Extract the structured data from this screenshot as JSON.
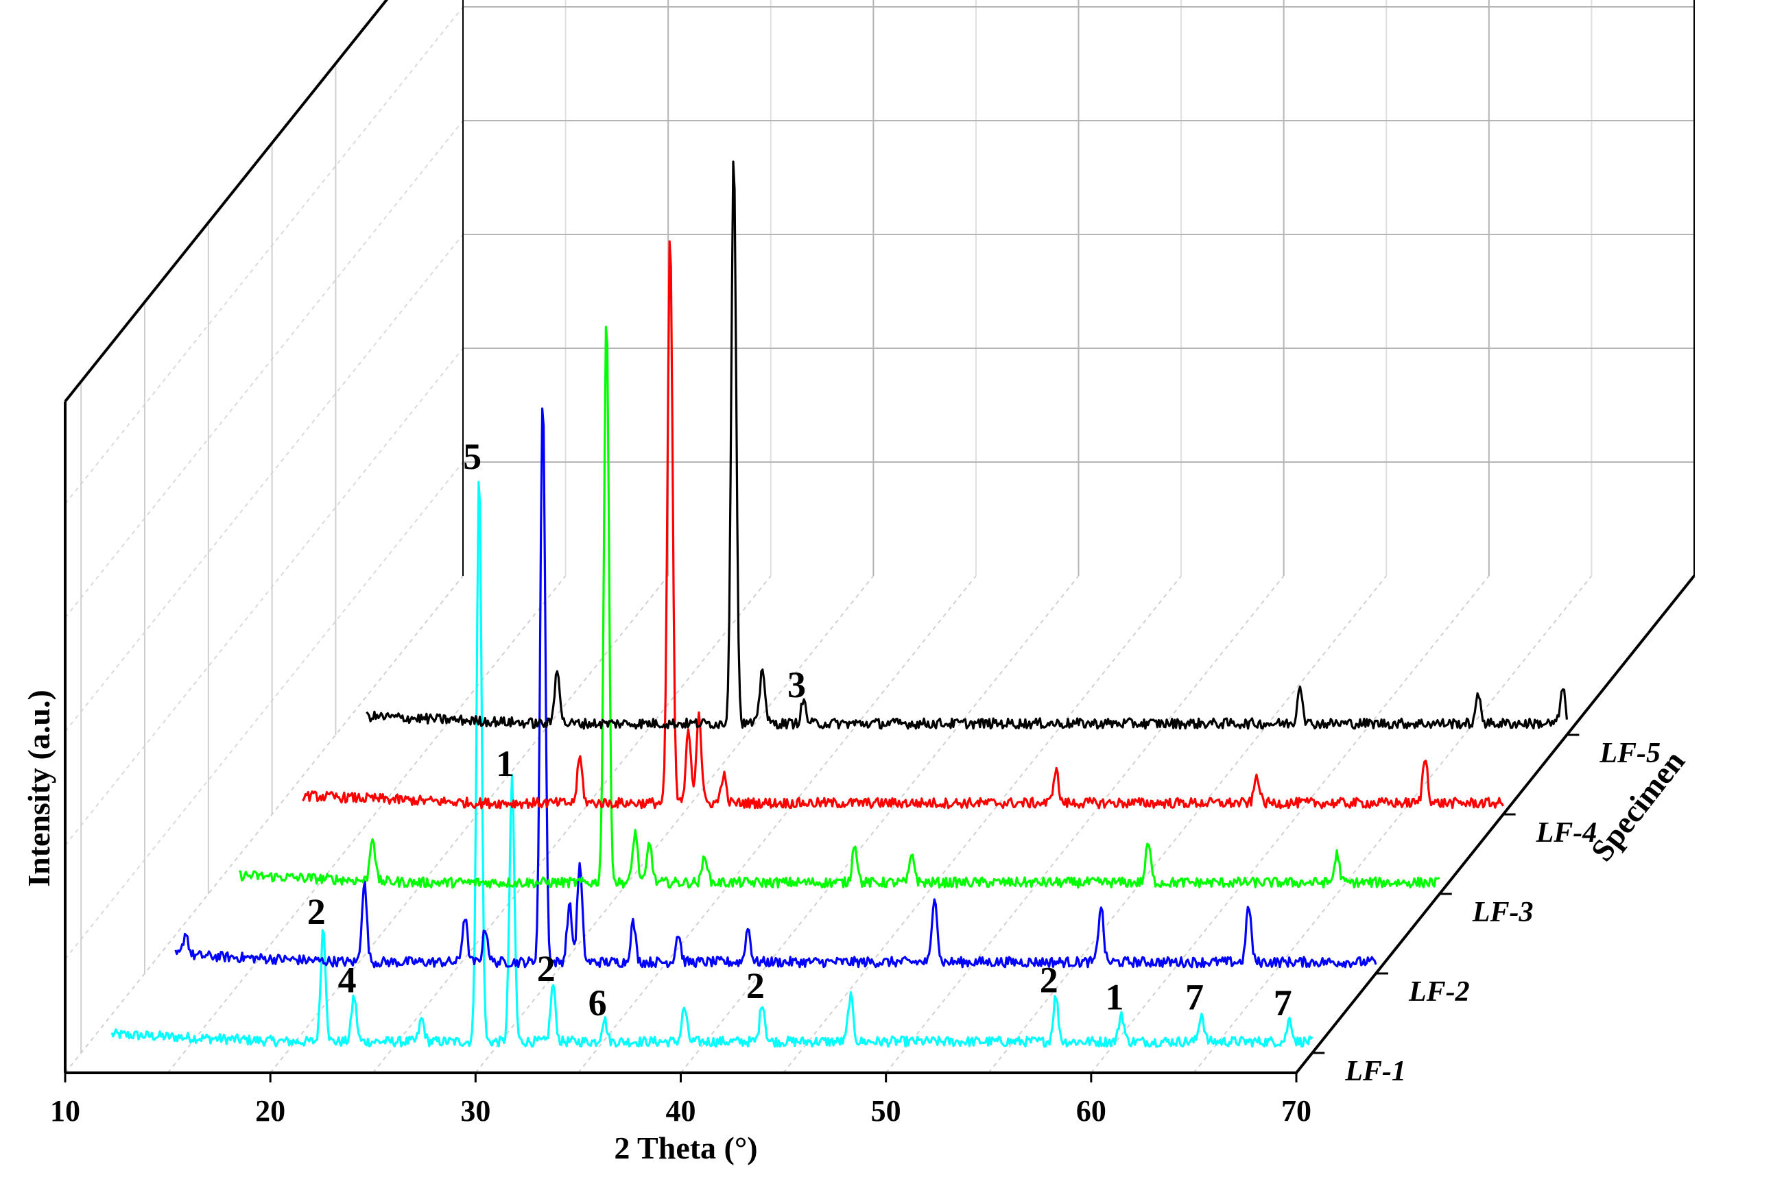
{
  "chart_data": {
    "type": "line",
    "view": "3d-waterfall",
    "xlabel": "2 Theta (°)",
    "ylabel": "Intensity (a.u.)",
    "zlabel": "Specimen",
    "xlim": [
      10,
      70
    ],
    "xticks": [
      "10",
      "20",
      "30",
      "40",
      "50",
      "60",
      "70"
    ],
    "grid": true,
    "series": [
      {
        "name": "LF-1",
        "color": "#00FFFF",
        "offset": 0,
        "peaks": [
          {
            "x": 21.8,
            "h": 0.2,
            "label": "2"
          },
          {
            "x": 23.3,
            "h": 0.08,
            "label": "4"
          },
          {
            "x": 26.6,
            "h": 0.04
          },
          {
            "x": 29.4,
            "h": 1.0,
            "label": "5"
          },
          {
            "x": 31.0,
            "h": 0.46,
            "label": "1"
          },
          {
            "x": 33.0,
            "h": 0.1,
            "label": "2"
          },
          {
            "x": 35.5,
            "h": 0.04,
            "label": "6"
          },
          {
            "x": 39.4,
            "h": 0.06
          },
          {
            "x": 43.2,
            "h": 0.07,
            "label": "2"
          },
          {
            "x": 47.5,
            "h": 0.08
          },
          {
            "x": 57.5,
            "h": 0.08,
            "label": "2"
          },
          {
            "x": 60.7,
            "h": 0.05,
            "label": "1"
          },
          {
            "x": 64.6,
            "h": 0.05,
            "label": "7"
          },
          {
            "x": 68.9,
            "h": 0.04,
            "label": "7"
          }
        ]
      },
      {
        "name": "LF-2",
        "color": "#0000FF",
        "offset": 1,
        "peaks": [
          {
            "x": 12.0,
            "h": 0.04
          },
          {
            "x": 20.7,
            "h": 0.14
          },
          {
            "x": 25.6,
            "h": 0.08
          },
          {
            "x": 26.6,
            "h": 0.06
          },
          {
            "x": 29.4,
            "h": 1.0
          },
          {
            "x": 30.7,
            "h": 0.1
          },
          {
            "x": 31.2,
            "h": 0.17
          },
          {
            "x": 33.8,
            "h": 0.07
          },
          {
            "x": 36.0,
            "h": 0.05
          },
          {
            "x": 39.4,
            "h": 0.06
          },
          {
            "x": 48.5,
            "h": 0.12
          },
          {
            "x": 56.6,
            "h": 0.1
          },
          {
            "x": 63.8,
            "h": 0.1
          }
        ]
      },
      {
        "name": "LF-3",
        "color": "#00FF00",
        "offset": 2,
        "peaks": [
          {
            "x": 18.0,
            "h": 0.08
          },
          {
            "x": 29.4,
            "h": 1.0
          },
          {
            "x": 30.8,
            "h": 0.09
          },
          {
            "x": 31.5,
            "h": 0.07
          },
          {
            "x": 34.2,
            "h": 0.05
          },
          {
            "x": 41.5,
            "h": 0.07
          },
          {
            "x": 44.3,
            "h": 0.05
          },
          {
            "x": 55.8,
            "h": 0.07
          },
          {
            "x": 65.0,
            "h": 0.05
          }
        ]
      },
      {
        "name": "LF-4",
        "color": "#FF0000",
        "offset": 3,
        "peaks": [
          {
            "x": 25.0,
            "h": 0.08
          },
          {
            "x": 29.4,
            "h": 1.0
          },
          {
            "x": 30.3,
            "h": 0.13
          },
          {
            "x": 30.8,
            "h": 0.16
          },
          {
            "x": 32.0,
            "h": 0.05
          },
          {
            "x": 48.2,
            "h": 0.06
          },
          {
            "x": 58.0,
            "h": 0.05
          },
          {
            "x": 66.2,
            "h": 0.08
          }
        ]
      },
      {
        "name": "LF-5",
        "color": "#000000",
        "offset": 4,
        "peaks": [
          {
            "x": 20.8,
            "h": 0.1
          },
          {
            "x": 29.4,
            "h": 1.0
          },
          {
            "x": 30.8,
            "h": 0.1
          },
          {
            "x": 32.8,
            "h": 0.04,
            "label": "3"
          },
          {
            "x": 57.0,
            "h": 0.07
          },
          {
            "x": 65.7,
            "h": 0.05
          },
          {
            "x": 69.8,
            "h": 0.06
          }
        ]
      }
    ]
  }
}
